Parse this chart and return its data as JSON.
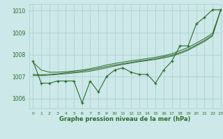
{
  "title": "Graphe pression niveau de la mer (hPa)",
  "bg_color": "#cce8e8",
  "grid_color": "#aacccc",
  "line_color": "#2d6a2d",
  "xlim": [
    -0.5,
    23
  ],
  "ylim": [
    1005.55,
    1010.3
  ],
  "yticks": [
    1006,
    1007,
    1008,
    1009,
    1010
  ],
  "xticks": [
    0,
    1,
    2,
    3,
    4,
    5,
    6,
    7,
    8,
    9,
    10,
    11,
    12,
    13,
    14,
    15,
    16,
    17,
    18,
    19,
    20,
    21,
    22,
    23
  ],
  "x": [
    0,
    1,
    2,
    3,
    4,
    5,
    6,
    7,
    8,
    9,
    10,
    11,
    12,
    13,
    14,
    15,
    16,
    17,
    18,
    19,
    20,
    21,
    22,
    23
  ],
  "y_measured": [
    1007.7,
    1006.7,
    1006.7,
    1006.8,
    1006.8,
    1006.8,
    1005.8,
    1006.8,
    1006.3,
    1007.0,
    1007.3,
    1007.4,
    1007.2,
    1007.1,
    1007.1,
    1006.7,
    1007.3,
    1007.7,
    1008.4,
    1008.4,
    1009.4,
    1009.7,
    1010.05,
    1010.05
  ],
  "y_smooth1": [
    1007.05,
    1007.05,
    1007.07,
    1007.1,
    1007.13,
    1007.17,
    1007.2,
    1007.25,
    1007.32,
    1007.4,
    1007.48,
    1007.55,
    1007.62,
    1007.68,
    1007.73,
    1007.78,
    1007.85,
    1007.93,
    1008.05,
    1008.2,
    1008.4,
    1008.6,
    1008.85,
    1010.05
  ],
  "y_smooth2": [
    1007.1,
    1007.08,
    1007.1,
    1007.13,
    1007.17,
    1007.21,
    1007.25,
    1007.31,
    1007.38,
    1007.46,
    1007.53,
    1007.59,
    1007.65,
    1007.71,
    1007.76,
    1007.82,
    1007.9,
    1007.98,
    1008.1,
    1008.25,
    1008.45,
    1008.65,
    1008.9,
    1010.05
  ],
  "y_smooth3": [
    1007.65,
    1007.3,
    1007.2,
    1007.2,
    1007.22,
    1007.26,
    1007.3,
    1007.36,
    1007.44,
    1007.53,
    1007.6,
    1007.66,
    1007.72,
    1007.77,
    1007.82,
    1007.88,
    1007.95,
    1008.04,
    1008.18,
    1008.33,
    1008.53,
    1008.73,
    1008.98,
    1010.05
  ]
}
